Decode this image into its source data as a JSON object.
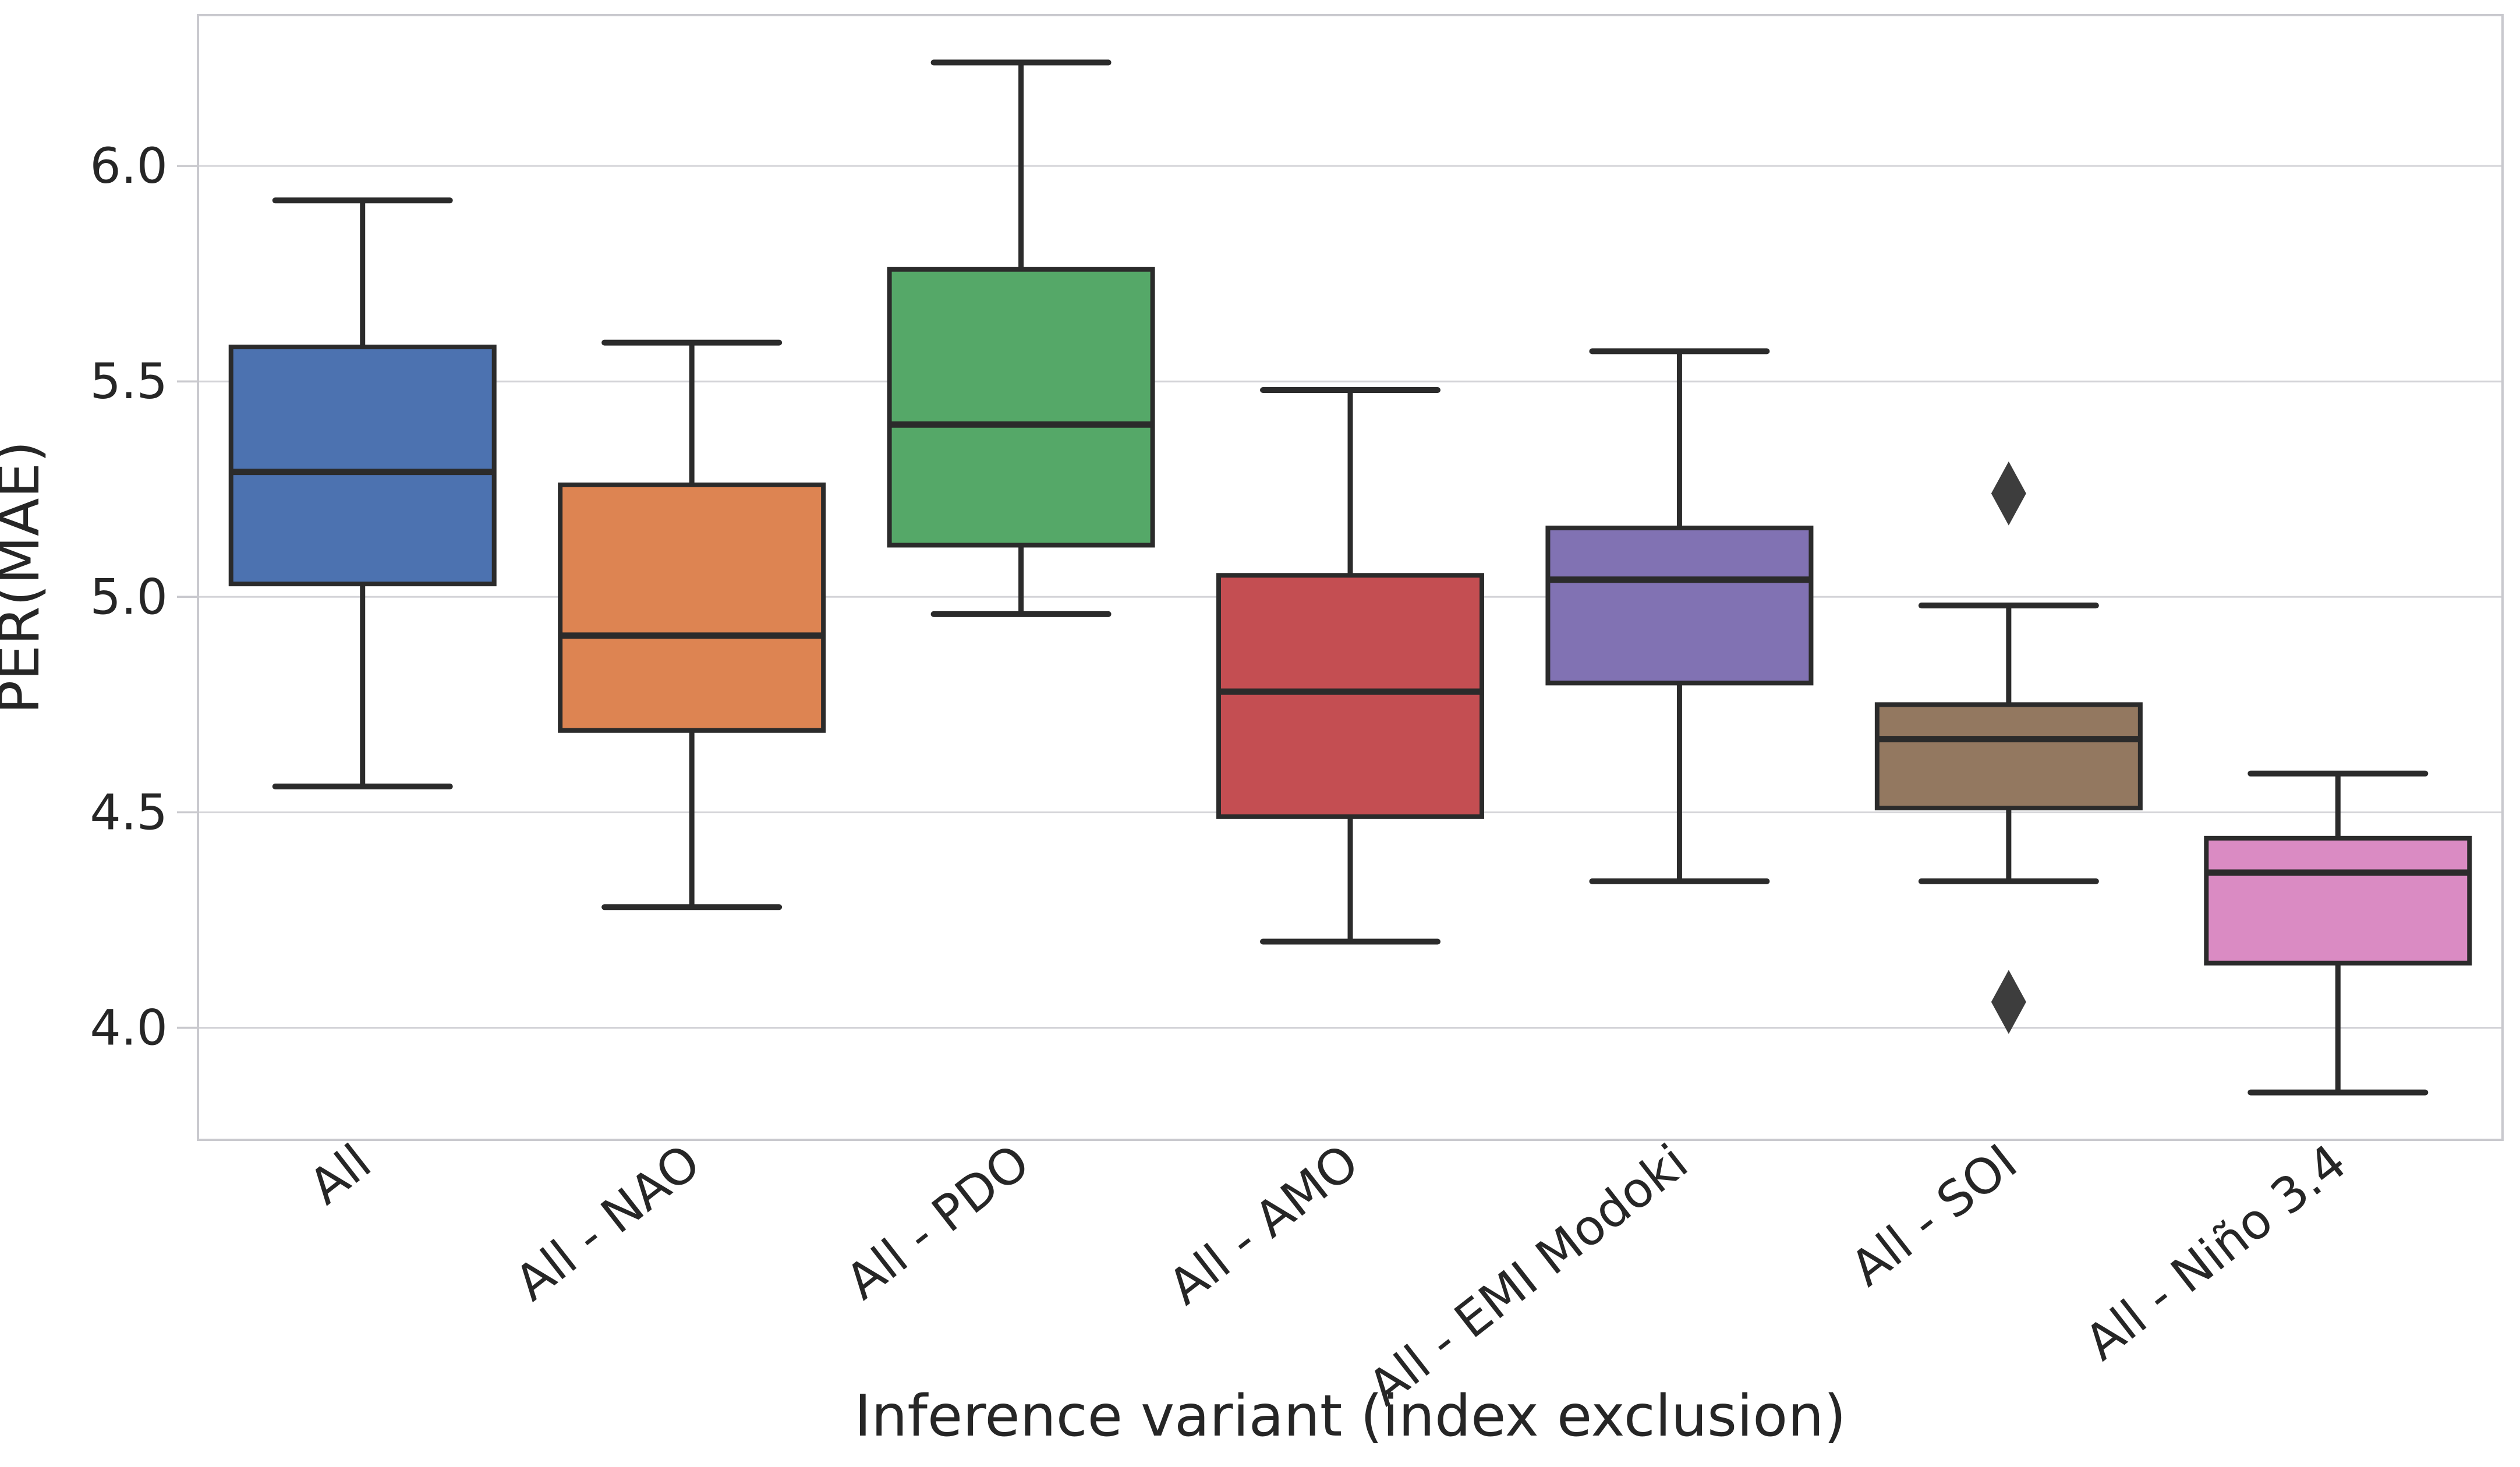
{
  "figure": {
    "background": "#ffffff"
  },
  "style": {
    "spine_color": "#c9c9ce",
    "grid_color": "#d4d4d8",
    "text_color": "#262626",
    "box_line_color": "#2b2b2b",
    "outlier_color": "#3d3d3d",
    "outlier_marker": "diamond"
  },
  "chart_data": {
    "type": "boxplot",
    "title": "",
    "xlabel": "Inference variant (index exclusion)",
    "ylabel": "PER(MAE)",
    "ylim": [
      3.74,
      6.35
    ],
    "yticks": [
      6.0,
      5.5,
      5.0,
      4.5,
      4.0
    ],
    "ytick_labels": [
      "6.0",
      "5.5",
      "5.0",
      "4.5",
      "4.0"
    ],
    "grid": "horizontal",
    "legend": "none",
    "xtick_rotation_deg": -38,
    "categories": [
      "All",
      "All - NAO",
      "All - PDO",
      "All - AMO",
      "All - EMI Modoki",
      "All - SOI",
      "All - Niño 3.4"
    ],
    "series": [
      {
        "label": "All",
        "color": "#4C72B0",
        "whisker_low": 4.56,
        "q1": 5.03,
        "median": 5.29,
        "q3": 5.58,
        "whisker_high": 5.92,
        "outliers": []
      },
      {
        "label": "All - NAO",
        "color": "#DD8452",
        "whisker_low": 4.28,
        "q1": 4.69,
        "median": 4.91,
        "q3": 5.26,
        "whisker_high": 5.59,
        "outliers": []
      },
      {
        "label": "All - PDO",
        "color": "#55A868",
        "whisker_low": 4.96,
        "q1": 5.12,
        "median": 5.4,
        "q3": 5.76,
        "whisker_high": 6.24,
        "outliers": []
      },
      {
        "label": "All - AMO",
        "color": "#C44E52",
        "whisker_low": 4.2,
        "q1": 4.49,
        "median": 4.78,
        "q3": 5.05,
        "whisker_high": 5.48,
        "outliers": []
      },
      {
        "label": "All - EMI Modoki",
        "color": "#8172B3",
        "whisker_low": 4.34,
        "q1": 4.8,
        "median": 5.04,
        "q3": 5.16,
        "whisker_high": 5.57,
        "outliers": []
      },
      {
        "label": "All - SOI",
        "color": "#937860",
        "whisker_low": 4.34,
        "q1": 4.51,
        "median": 4.67,
        "q3": 4.75,
        "whisker_high": 4.98,
        "outliers": [
          5.24,
          4.06
        ]
      },
      {
        "label": "All - Niño 3.4",
        "color": "#DA8BC3",
        "whisker_low": 3.85,
        "q1": 4.15,
        "median": 4.36,
        "q3": 4.44,
        "whisker_high": 4.59,
        "outliers": []
      }
    ]
  }
}
